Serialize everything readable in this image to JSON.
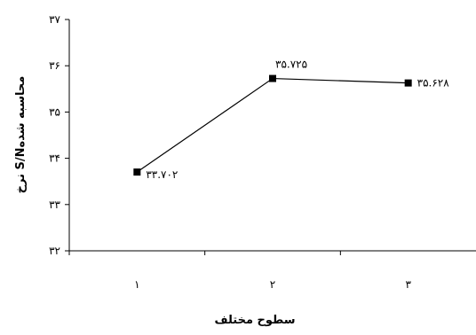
{
  "chart_data": {
    "type": "line",
    "xlabel": "سطوح مختلف",
    "ylabel": "نرخ S/Nمحاسبه شده",
    "categories": [
      "۱",
      "۲",
      "۳"
    ],
    "y_ticks": [
      "۳۲",
      "۳۳",
      "۳۴",
      "۳۵",
      "۳۶",
      "۳۷"
    ],
    "ylim": [
      32,
      37
    ],
    "series": [
      {
        "values": [
          33.702,
          35.725,
          35.628
        ],
        "data_labels": [
          "۳۳.۷۰۲",
          "۳۵.۷۲۵",
          "۳۵.۶۲۸"
        ],
        "color": "#000000",
        "marker": "square"
      }
    ],
    "grid": false,
    "legend": "none"
  }
}
